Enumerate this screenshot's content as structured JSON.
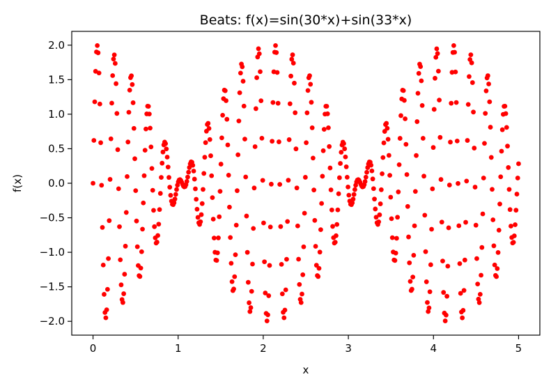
{
  "chart_data": {
    "type": "scatter",
    "title": "Beats: f(x)=sin(30*x)+sin(33*x)",
    "xlabel": "x",
    "ylabel": "f(x)",
    "xlim": [
      -0.25,
      5.25
    ],
    "ylim": [
      -2.2,
      2.2
    ],
    "xticks": [
      0,
      1,
      2,
      3,
      4,
      5
    ],
    "xtick_labels": [
      "0",
      "1",
      "2",
      "3",
      "4",
      "5"
    ],
    "yticks": [
      -2.0,
      -1.5,
      -1.0,
      -0.5,
      0.0,
      0.5,
      1.0,
      1.5,
      2.0
    ],
    "ytick_labels": [
      "−2.0",
      "−1.5",
      "−1.0",
      "−0.5",
      "0.0",
      "0.5",
      "1.0",
      "1.5",
      "2.0"
    ],
    "grid": false,
    "marker_color": "#ff0000",
    "series": [
      {
        "function": "sin(30*x)+sin(33*x)",
        "x_start": 0,
        "x_end": 5,
        "n_points": 500
      }
    ]
  }
}
